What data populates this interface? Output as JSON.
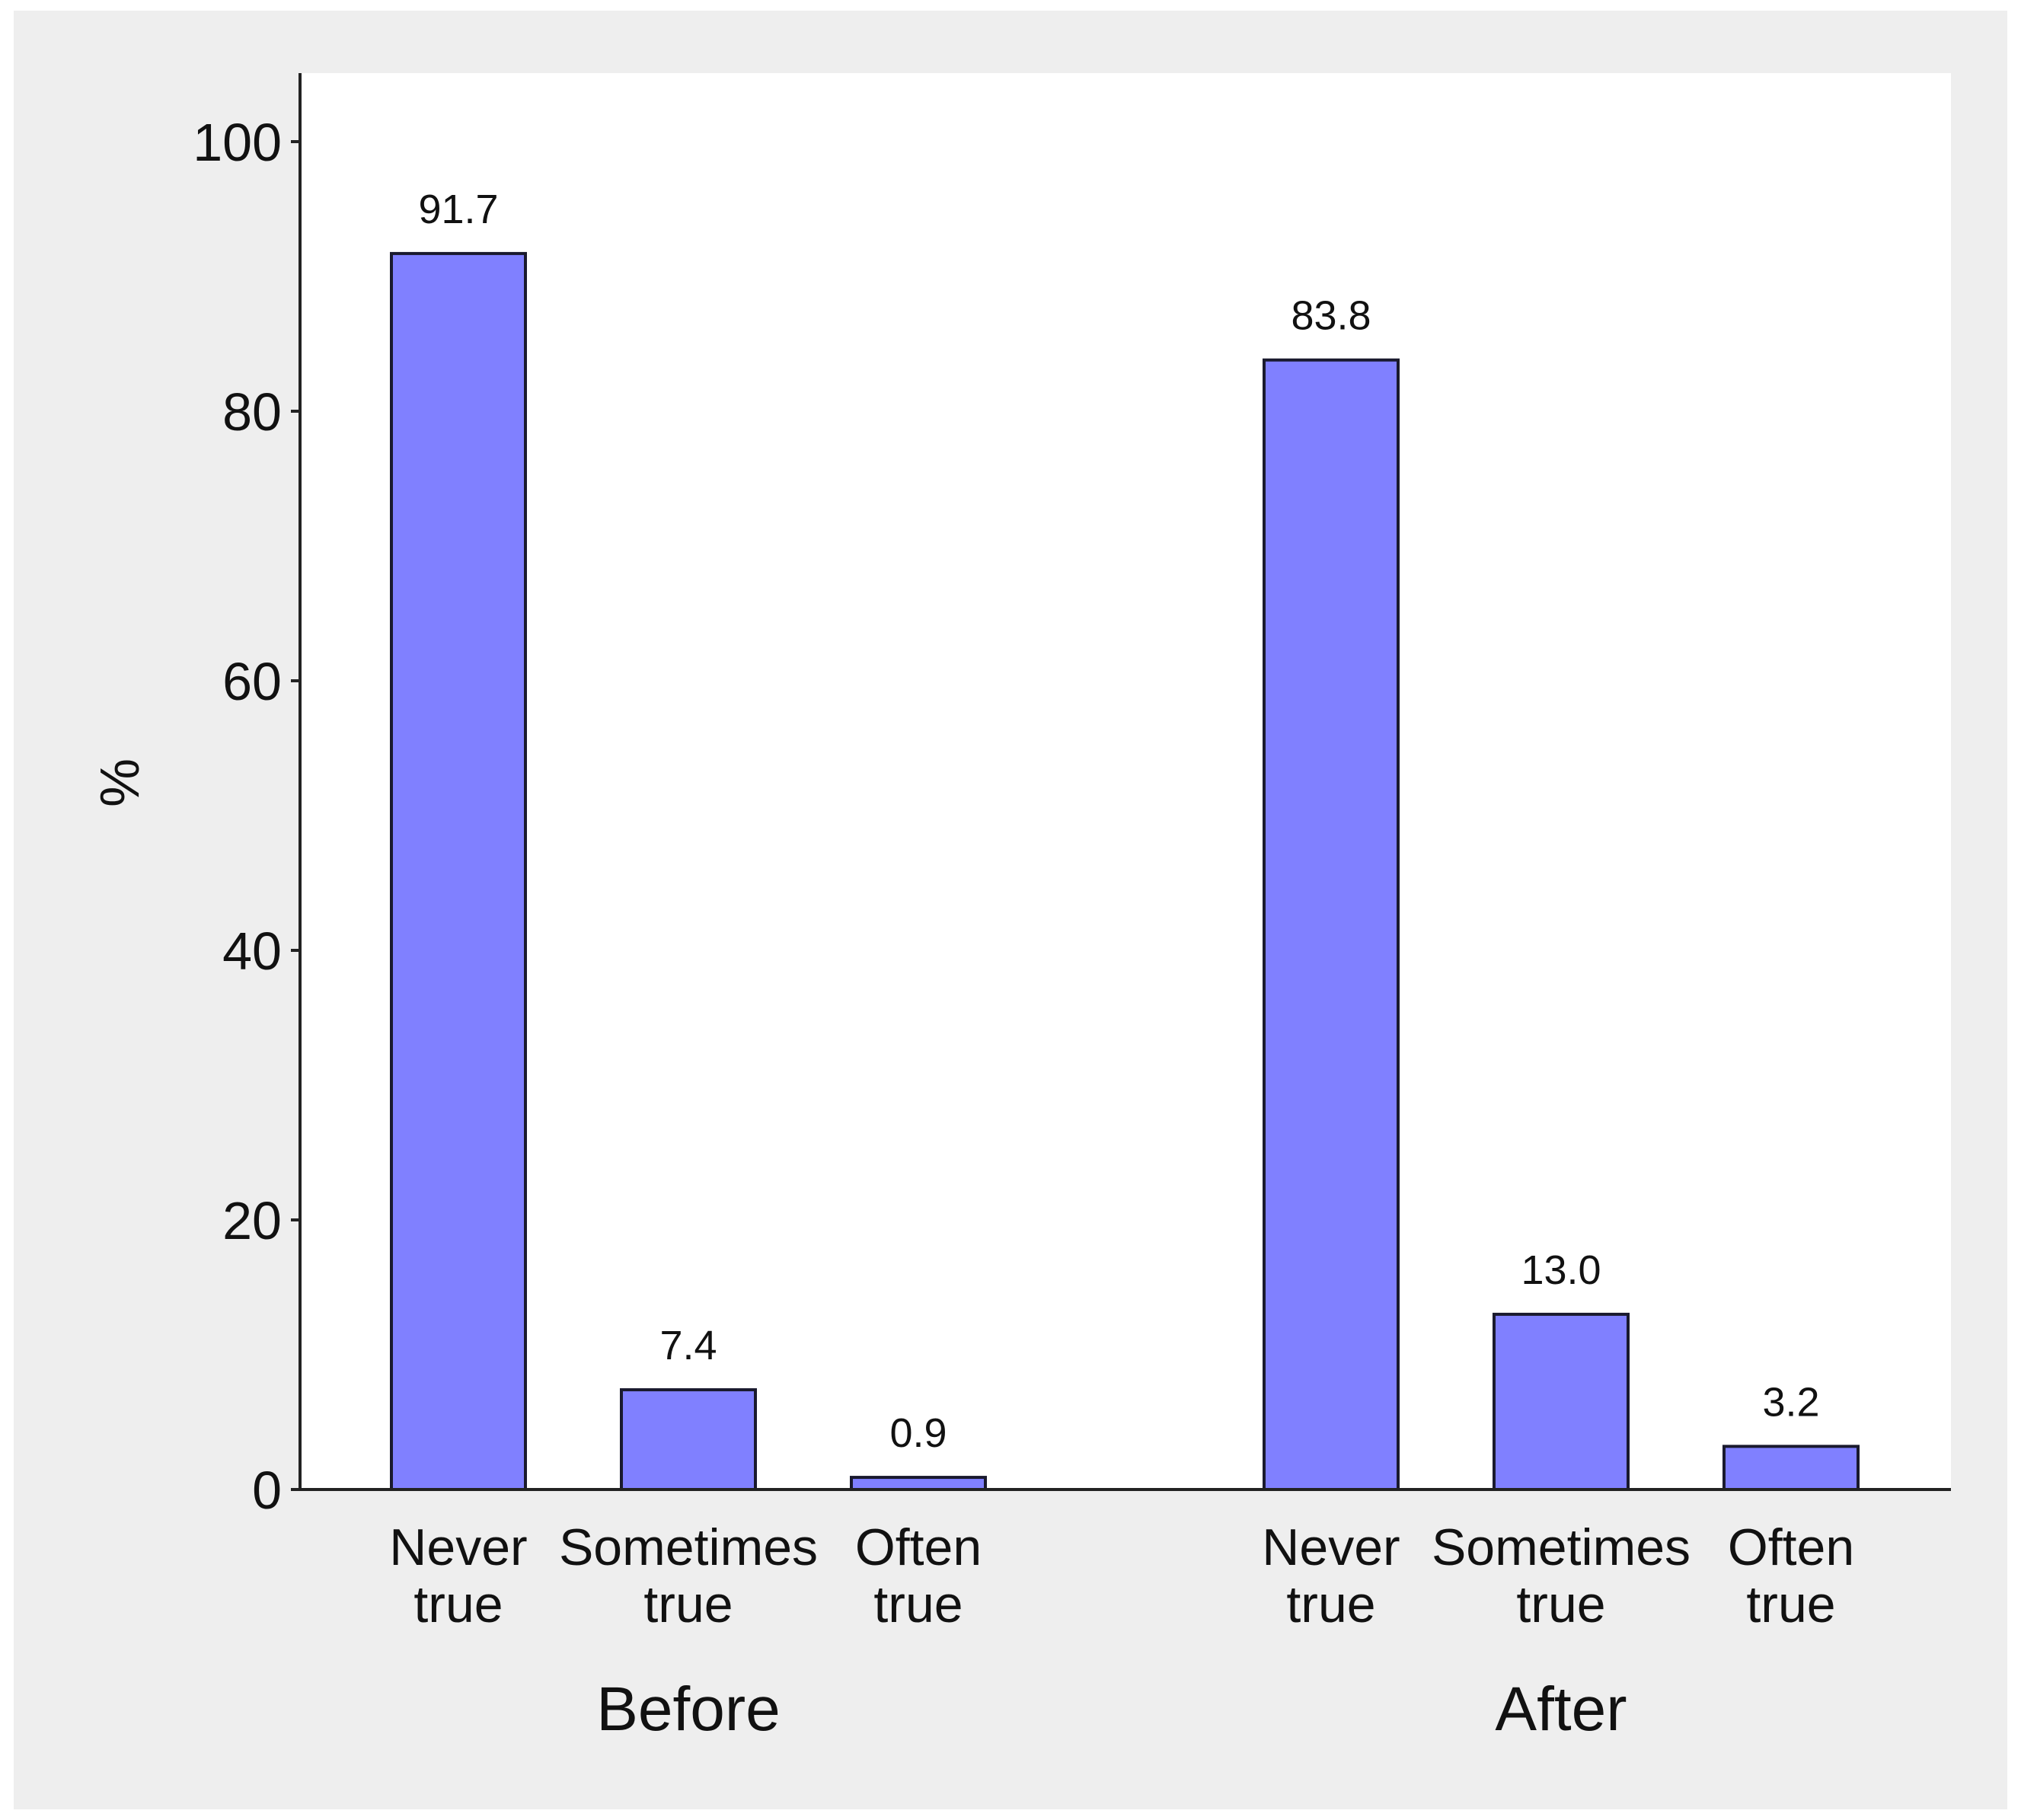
{
  "chart_data": {
    "type": "bar",
    "title": "",
    "xlabel": "",
    "ylabel": "%",
    "ylim": [
      0,
      105
    ],
    "yticks": [
      0,
      20,
      40,
      60,
      80,
      100
    ],
    "grid": false,
    "legend": "none",
    "colors": {
      "background": "#eeeeee",
      "plot_background": "#ffffff",
      "bar_fill": "#8080ff",
      "bar_stroke": "#1a1a2e",
      "axis": "#222222"
    },
    "groups": [
      {
        "name": "Before",
        "bars": [
          {
            "category": [
              "Never",
              "true"
            ],
            "value": 91.7,
            "label": "91.7"
          },
          {
            "category": [
              "Sometimes",
              "true"
            ],
            "value": 7.4,
            "label": "7.4"
          },
          {
            "category": [
              "Often",
              "true"
            ],
            "value": 0.9,
            "label": "0.9"
          }
        ]
      },
      {
        "name": "After",
        "bars": [
          {
            "category": [
              "Never",
              "true"
            ],
            "value": 83.8,
            "label": "83.8"
          },
          {
            "category": [
              "Sometimes",
              "true"
            ],
            "value": 13.0,
            "label": "13.0"
          },
          {
            "category": [
              "Often",
              "true"
            ],
            "value": 3.2,
            "label": "3.2"
          }
        ]
      }
    ]
  }
}
